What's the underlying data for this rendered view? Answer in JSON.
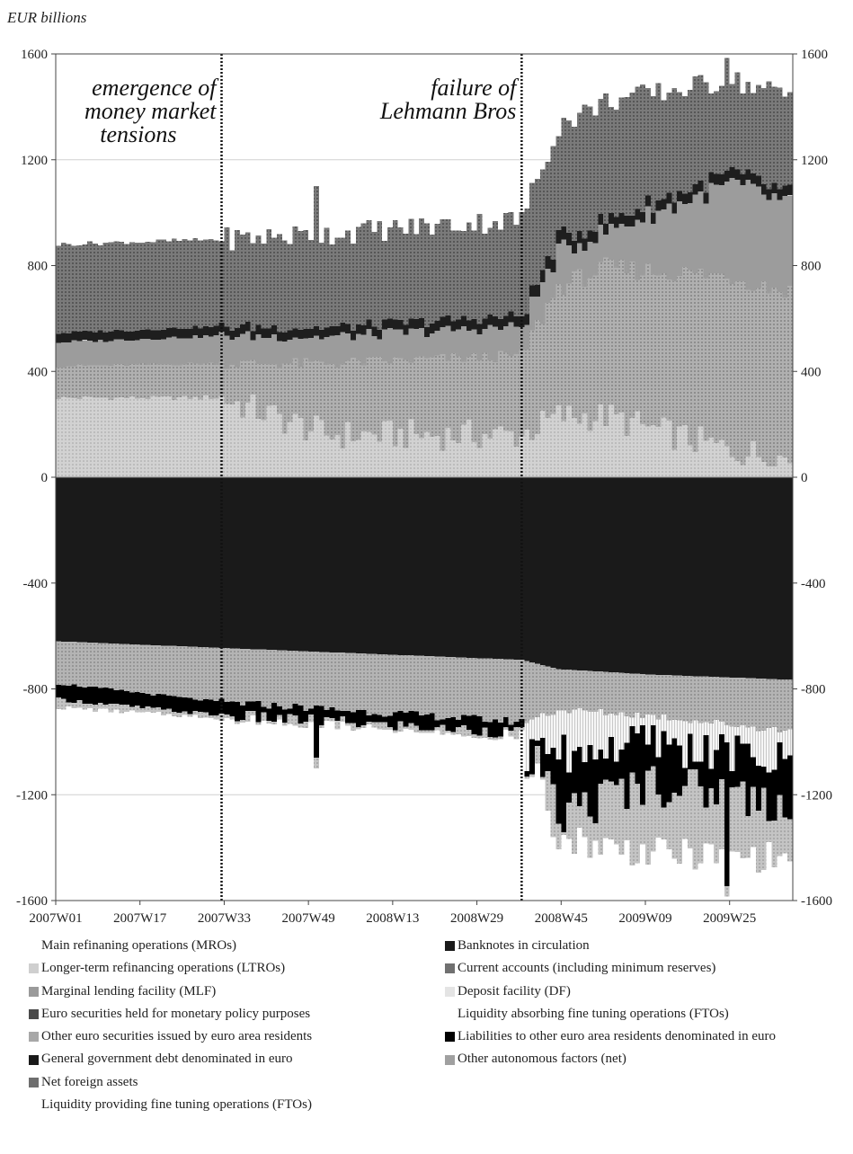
{
  "unit_label": "EUR billions",
  "chart_data": {
    "type": "bar",
    "stacked": true,
    "ylim": [
      -1600,
      1600
    ],
    "yticks": [
      -1600,
      -1200,
      -800,
      -400,
      0,
      400,
      800,
      1200,
      1600
    ],
    "x_tick_labels": [
      "2007W01",
      "2007W17",
      "2007W33",
      "2007W49",
      "2008W13",
      "2008W29",
      "2008W45",
      "2009W09",
      "2009W25"
    ],
    "week_range": [
      "2007W01",
      "2009W36"
    ],
    "grid": true,
    "annotations": [
      {
        "text": "emergence of money market tensions",
        "at": "2007W32"
      },
      {
        "text": "failure of Lehmann Bros",
        "at": "2008W37"
      }
    ],
    "keypoints_positive": [
      {
        "week": "2007W01",
        "mro": 300,
        "ltro": 420,
        "ecb_low": 510,
        "ecb_high": 545,
        "nfa_top": 880
      },
      {
        "week": "2007W32",
        "mro": 300,
        "ltro": 430,
        "ecb_low": 535,
        "ecb_high": 570,
        "nfa_top": 900
      },
      {
        "week": "2007W52",
        "mro": 160,
        "ltro": 430,
        "ecb_low": 530,
        "ecb_high": 565,
        "nfa_top": 920
      },
      {
        "week": "2008W37",
        "mro": 160,
        "ltro": 460,
        "ecb_low": 570,
        "ecb_high": 610,
        "nfa_top": 975
      },
      {
        "week": "2008W44",
        "mro": 230,
        "ltro": 720,
        "ecb_low": 850,
        "ecb_high": 900,
        "nfa_top": 1330
      },
      {
        "week": "2009W01",
        "mro": 230,
        "ltro": 790,
        "ecb_low": 930,
        "ecb_high": 970,
        "nfa_top": 1420
      },
      {
        "week": "2009W25",
        "mro": 100,
        "ltro": 760,
        "ecb_low": 1110,
        "ecb_high": 1150,
        "nfa_top": 1500
      },
      {
        "week": "2009W36",
        "mro": 70,
        "ltro": 700,
        "ecb_low": 1030,
        "ecb_high": 1070,
        "nfa_top": 1440
      }
    ],
    "keypoints_negative": [
      {
        "week": "2007W01",
        "banknotes": -620,
        "current_accounts": -780,
        "liabilities": -840,
        "other_autonomous": -870
      },
      {
        "week": "2007W32",
        "banknotes": -645,
        "current_accounts": -850,
        "liabilities": -900,
        "other_autonomous": -910
      },
      {
        "week": "2008W37",
        "banknotes": -690,
        "current_accounts": -925,
        "liabilities": -965,
        "other_autonomous": -975
      },
      {
        "week": "2008W44",
        "banknotes": -725,
        "current_accounts": -880,
        "deposit_facility": -1050,
        "liabilities": -1280,
        "other_autonomous": -1360
      },
      {
        "week": "2009W09",
        "banknotes": -745,
        "current_accounts": -900,
        "deposit_facility": -1000,
        "liabilities": -1150,
        "other_autonomous": -1420
      },
      {
        "week": "2009W36",
        "banknotes": -765,
        "current_accounts": -960,
        "deposit_facility": -1080,
        "liabilities": -1230,
        "other_autonomous": -1440
      }
    ],
    "spikes": [
      {
        "week": "2007W50",
        "nfa_top": 1100,
        "other_autonomous": -1100
      },
      {
        "week": "2009W24",
        "nfa_top": 1585,
        "other_autonomous": -1585
      }
    ],
    "legend": {
      "left": [
        {
          "label": "Main refinaning operations (MROs)",
          "swatch": "none"
        },
        {
          "label": "Longer-term refinancing operations (LTROs)",
          "swatch": "#cfcfcf"
        },
        {
          "label": "Marginal lending facility (MLF)",
          "swatch": "#9a9a9a"
        },
        {
          "label": "Euro securities held for monetary policy purposes",
          "swatch": "#4a4a4a"
        },
        {
          "label": "Other euro securities issued by euro area residents",
          "swatch": "#a8a8a8"
        },
        {
          "label": "General government debt denominated in euro",
          "swatch": "#1a1a1a"
        },
        {
          "label": "Net foreign assets",
          "swatch": "#6e6e6e"
        },
        {
          "label": "Liquidity providing fine tuning operations (FTOs)",
          "swatch": "none"
        }
      ],
      "right": [
        {
          "label": "Banknotes in circulation",
          "swatch": "#1a1a1a"
        },
        {
          "label": "Current accounts (including minimum reserves)",
          "swatch": "#707070"
        },
        {
          "label": "Deposit facility (DF)",
          "swatch": "#e4e4e4"
        },
        {
          "label": "Liquidity absorbing fine tuning operations (FTOs)",
          "swatch": "none"
        },
        {
          "label": "Liabilities to other euro area residents denominated in euro",
          "swatch": "#000000"
        },
        {
          "label": "Other autonomous factors (net)",
          "swatch": "#a0a0a0"
        }
      ]
    },
    "colors": {
      "mro": "#c6c6c6",
      "ltro": "#9a9a9a",
      "ecb": "#1e1e1e",
      "nfa": "#6a6a6a",
      "banknotes": "#1a1a1a",
      "current_accounts": "#a6a6a6",
      "deposit_facility": "#ececec",
      "liabilities": "#000000",
      "other_autonomous": "#bcbcbc"
    }
  }
}
